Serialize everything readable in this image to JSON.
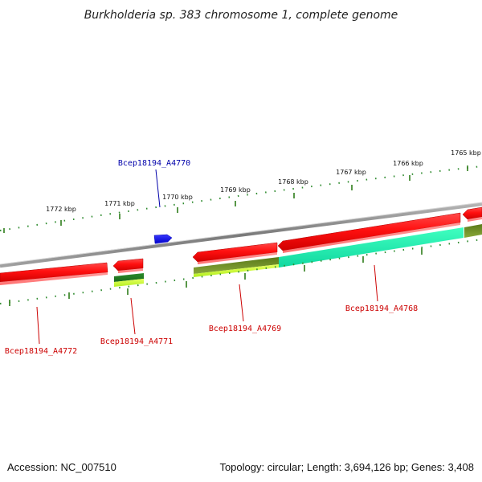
{
  "title": "Burkholderia sp. 383 chromosome 1, complete genome",
  "accession": "Accession: NC_007510",
  "summary": "Topology: circular; Length: 3,694,126 bp; Genes: 3,408",
  "scale_ticks": [
    {
      "label": "1772 kbp"
    },
    {
      "label": "1771 kbp"
    },
    {
      "label": "1770 kbp"
    },
    {
      "label": "1769 kbp"
    },
    {
      "label": "1768 kbp"
    },
    {
      "label": "1767 kbp"
    },
    {
      "label": "1766 kbp"
    },
    {
      "label": "1765 kbp"
    }
  ],
  "genes": [
    {
      "locus": "Bcep18194_A4770",
      "strand": "+",
      "label_color": "#0000aa",
      "fill": "#1a1aff"
    },
    {
      "locus": "Bcep18194_A4772",
      "strand": "-",
      "label_color": "#cc0000",
      "fill": "#ff1a1a"
    },
    {
      "locus": "Bcep18194_A4771",
      "strand": "-",
      "label_color": "#cc0000",
      "fill": "#ff1a1a"
    },
    {
      "locus": "Bcep18194_A4769",
      "strand": "-",
      "label_color": "#cc0000",
      "fill": "#ff1a1a"
    },
    {
      "locus": "Bcep18194_A4768",
      "strand": "-",
      "label_color": "#cc0000",
      "fill": "#ff1a1a"
    }
  ],
  "colors": {
    "backbone": "#8a8a8a",
    "forward_gene": "#1a1aff",
    "reverse_gene": "#ff1a1a",
    "tick_major": "#2e7d1a",
    "tick_minor": "#3a9a2a",
    "cds_olive": "#6b8e23",
    "cds_lime": "#c8ff3a",
    "cds_aqua": "#1effb4",
    "cds_green": "#2e8b2e"
  }
}
